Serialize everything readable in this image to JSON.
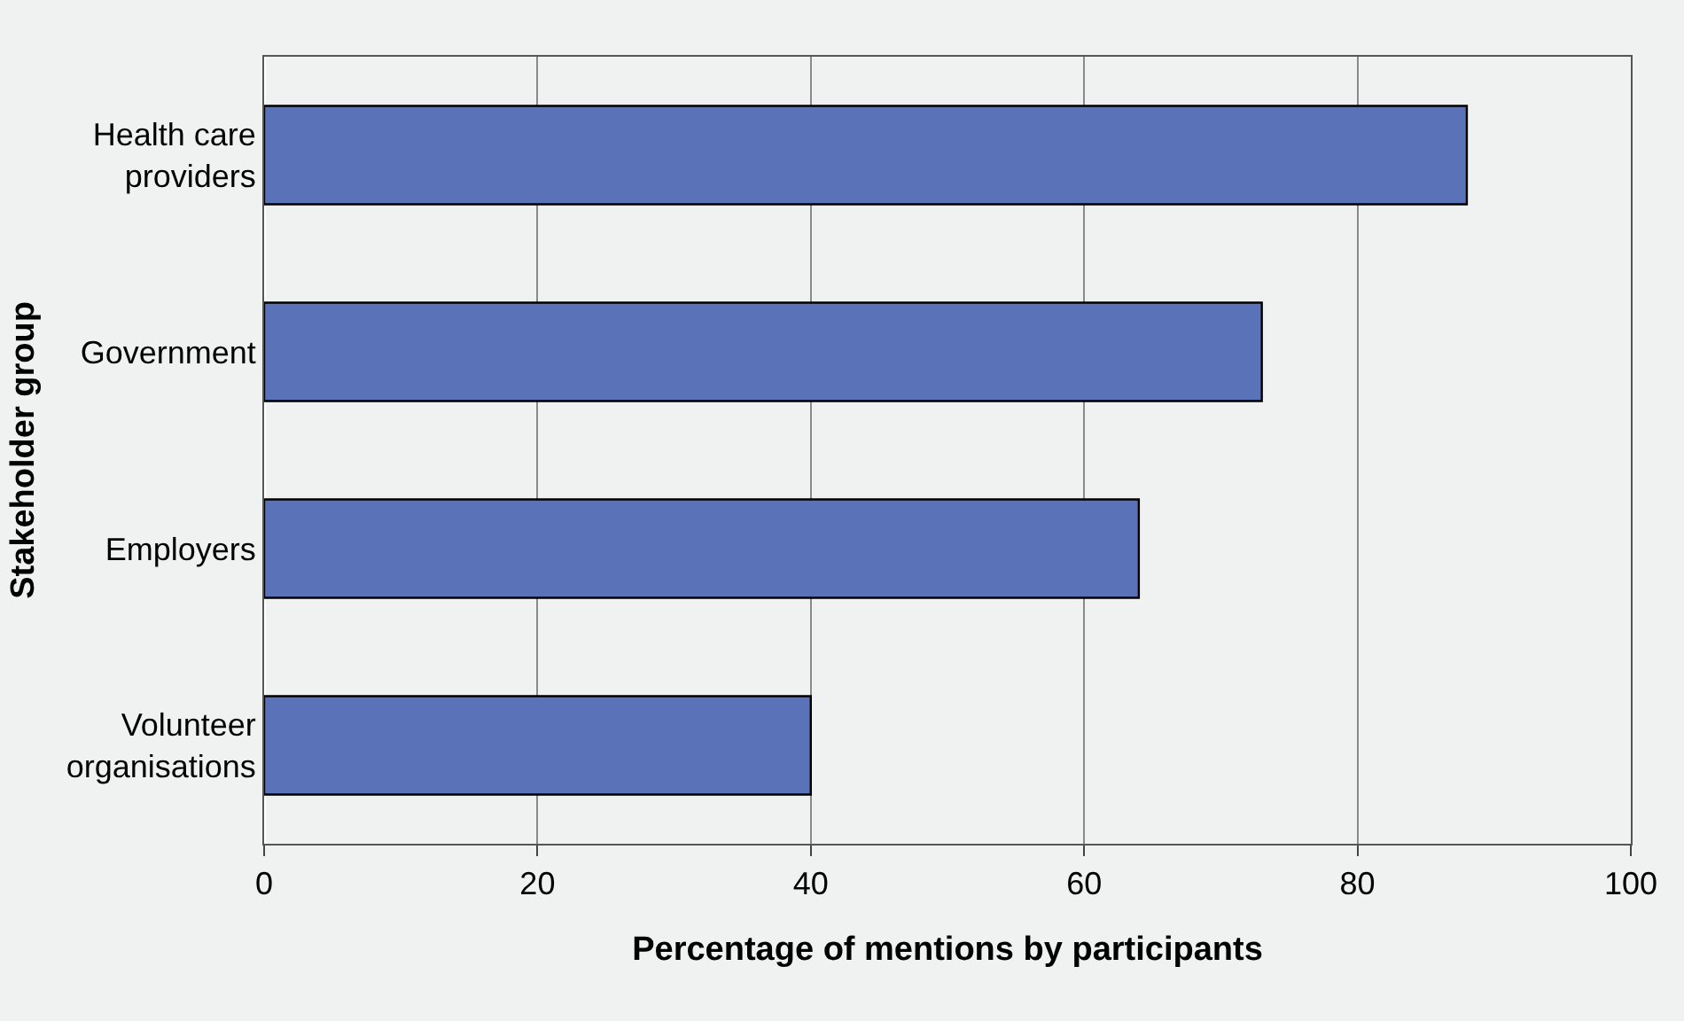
{
  "chart_data": {
    "type": "bar",
    "orientation": "horizontal",
    "xlabel": "Percentage of mentions by participants",
    "ylabel": "Stakeholder group",
    "categories": [
      "Health care providers",
      "Government",
      "Employers",
      "Volunteer organisations"
    ],
    "values": [
      88,
      73,
      64,
      40
    ],
    "color": "#5a72b8",
    "xlim": [
      0,
      100
    ],
    "xticks": [
      0,
      20,
      40,
      60,
      80,
      100
    ],
    "grid": "x"
  }
}
